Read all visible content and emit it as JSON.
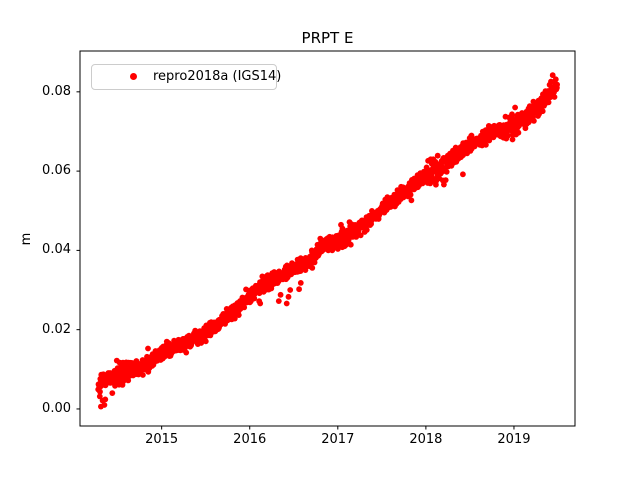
{
  "window": {
    "background": "#ffffff"
  },
  "chart_data": {
    "type": "scatter",
    "title": "PRPT E",
    "xlabel": "",
    "ylabel": "m",
    "legend": {
      "position": "upper-left",
      "border_color": "#cccccc",
      "entries": [
        {
          "label": "repro2018a (IGS14)",
          "color": "#ff0000",
          "marker": "dot"
        }
      ]
    },
    "axes": {
      "xlim": [
        2014.073,
        2019.693
      ],
      "ylim": [
        -0.0043,
        0.0903
      ],
      "grid": false,
      "spine_color": "#000000",
      "x_ticks": [
        {
          "value": 2015,
          "label": "2015"
        },
        {
          "value": 2016,
          "label": "2016"
        },
        {
          "value": 2017,
          "label": "2017"
        },
        {
          "value": 2018,
          "label": "2018"
        },
        {
          "value": 2019,
          "label": "2019"
        }
      ],
      "y_ticks": [
        {
          "value": 0.0,
          "label": "0.00"
        },
        {
          "value": 0.02,
          "label": "0.02"
        },
        {
          "value": 0.04,
          "label": "0.04"
        },
        {
          "value": 0.06,
          "label": "0.06"
        },
        {
          "value": 0.08,
          "label": "0.08"
        }
      ]
    },
    "series": [
      {
        "name": "repro2018a (IGS14)",
        "color": "#ff0000",
        "marker": "dot",
        "marker_radius_px": 2.9,
        "n_points": 1780,
        "x_start": 2014.28,
        "x_end": 2019.49,
        "seed": 42,
        "noise_std": 0.0009,
        "outlier_prob": 0.015,
        "outlier_scale": 2.2,
        "spread_regions": [
          [
            2014.45,
            2014.6,
            1.6
          ],
          [
            2017.0,
            2017.15,
            1.7
          ],
          [
            2018.0,
            2018.25,
            1.7
          ],
          [
            2018.9,
            2019.05,
            1.7
          ]
        ],
        "trend_anchors": [
          [
            2014.28,
            0.0058
          ],
          [
            2014.4,
            0.008
          ],
          [
            2014.55,
            0.0092
          ],
          [
            2014.8,
            0.011
          ],
          [
            2015.0,
            0.0138
          ],
          [
            2015.25,
            0.0163
          ],
          [
            2015.5,
            0.019
          ],
          [
            2015.75,
            0.023
          ],
          [
            2016.0,
            0.0285
          ],
          [
            2016.2,
            0.032
          ],
          [
            2016.45,
            0.0345
          ],
          [
            2016.65,
            0.0372
          ],
          [
            2016.85,
            0.0412
          ],
          [
            2017.05,
            0.0432
          ],
          [
            2017.2,
            0.045
          ],
          [
            2017.4,
            0.0482
          ],
          [
            2017.6,
            0.052
          ],
          [
            2017.8,
            0.0555
          ],
          [
            2018.0,
            0.0588
          ],
          [
            2018.15,
            0.06
          ],
          [
            2018.4,
            0.0652
          ],
          [
            2018.6,
            0.0676
          ],
          [
            2018.8,
            0.0698
          ],
          [
            2019.0,
            0.0717
          ],
          [
            2019.12,
            0.0728
          ],
          [
            2019.25,
            0.0758
          ],
          [
            2019.38,
            0.079
          ],
          [
            2019.49,
            0.0818
          ]
        ],
        "extra_points": [
          [
            2014.31,
            0.0006
          ],
          [
            2014.33,
            0.0021
          ],
          [
            2014.35,
            0.001
          ],
          [
            2014.36,
            0.0024
          ],
          [
            2014.44,
            0.004
          ],
          [
            2014.62,
            0.0072
          ],
          [
            2015.83,
            0.0228
          ],
          [
            2016.33,
            0.0272
          ],
          [
            2016.35,
            0.0288
          ],
          [
            2016.42,
            0.0266
          ],
          [
            2016.44,
            0.0283
          ],
          [
            2016.46,
            0.03
          ],
          [
            2016.56,
            0.0302
          ],
          [
            2016.58,
            0.0318
          ],
          [
            2017.26,
            0.0438
          ],
          [
            2018.42,
            0.0592
          ],
          [
            2019.05,
            0.0697
          ],
          [
            2019.42,
            0.0826
          ],
          [
            2019.44,
            0.0842
          ]
        ]
      }
    ]
  }
}
